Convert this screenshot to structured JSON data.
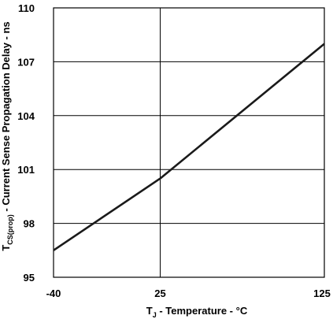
{
  "chart_data": {
    "type": "line",
    "title": "",
    "xlabel": {
      "prefix": "T",
      "subscript": "J",
      "suffix": " - Temperature - °C"
    },
    "ylabel": {
      "prefix": "T",
      "subscript": "CS(prop)",
      "suffix": " - Current Sense Propagation Delay - ns"
    },
    "xlim": [
      -40,
      125
    ],
    "ylim": [
      95,
      110
    ],
    "x_ticks": [
      -40,
      25,
      125
    ],
    "x_tick_labels": [
      "-40",
      "25",
      "125"
    ],
    "y_ticks": [
      95,
      98,
      101,
      104,
      107,
      110
    ],
    "y_tick_labels": [
      "95",
      "98",
      "101",
      "104",
      "107",
      "110"
    ],
    "grid": true,
    "legend": "none",
    "line_color": "#1a1a1a",
    "series": [
      {
        "x": [
          -40,
          25,
          125
        ],
        "y": [
          96.5,
          100.5,
          108
        ]
      }
    ]
  }
}
